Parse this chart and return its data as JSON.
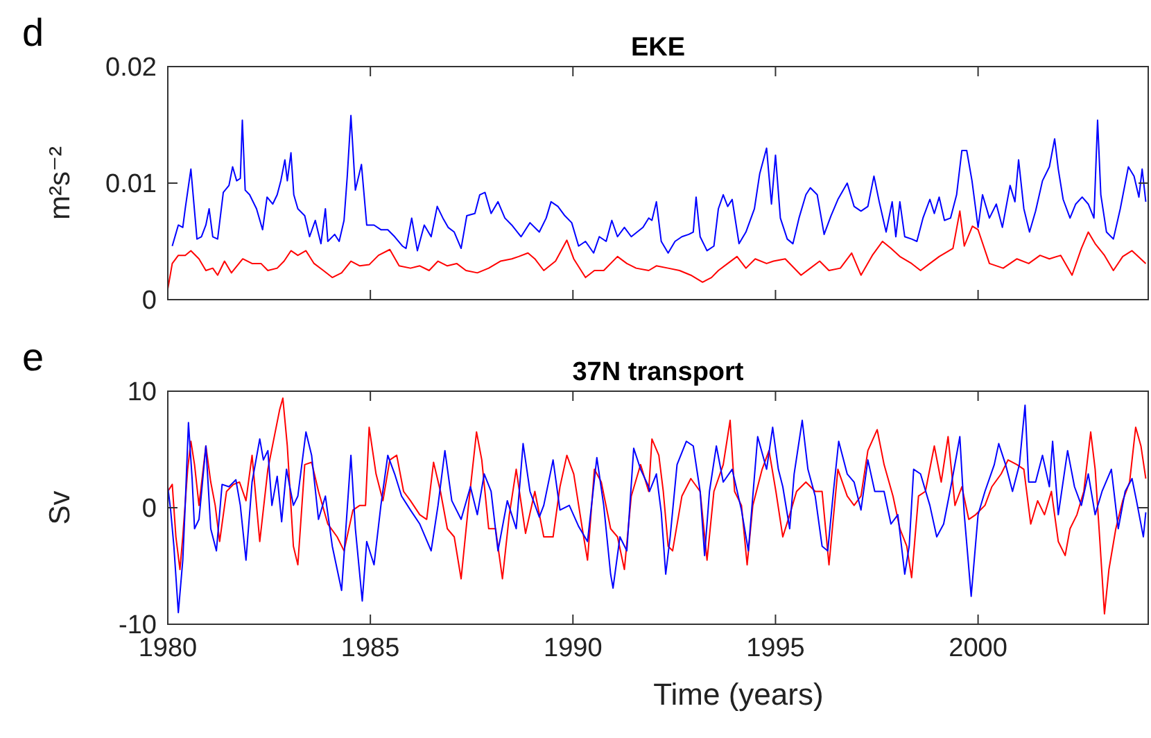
{
  "chart_data": [
    {
      "type": "line",
      "title": "EKE",
      "ylabel": "m²s⁻²",
      "annotations": [
        "d"
      ],
      "xlim": [
        1980,
        2004.2
      ],
      "xticks": [
        1980,
        1985,
        1990,
        1995,
        2000
      ],
      "ylim": [
        0,
        0.02
      ],
      "yticks": [
        0,
        0.01,
        0.02
      ],
      "tick_labels": "y",
      "series": [
        {
          "color": "#0000ff",
          "x": [
            1980.11,
            1980.26,
            1980.37,
            1980.43,
            1980.57,
            1980.72,
            1980.83,
            1980.94,
            1981.02,
            1981.11,
            1981.23,
            1981.37,
            1981.51,
            1981.6,
            1981.7,
            1981.79,
            1981.84,
            1981.91,
            1982.02,
            1982.19,
            1982.34,
            1982.45,
            1982.59,
            1982.7,
            1982.79,
            1982.89,
            1982.95,
            1983.04,
            1983.11,
            1983.21,
            1983.38,
            1983.5,
            1983.64,
            1983.78,
            1983.89,
            1983.95,
            1984.12,
            1984.23,
            1984.35,
            1984.43,
            1984.52,
            1984.63,
            1984.78,
            1984.91,
            1985.09,
            1985.26,
            1985.43,
            1985.6,
            1985.79,
            1985.88,
            1986.02,
            1986.16,
            1986.33,
            1986.5,
            1986.65,
            1986.79,
            1986.92,
            1987.07,
            1987.24,
            1987.38,
            1987.58,
            1987.7,
            1987.83,
            1987.98,
            1988.15,
            1988.32,
            1988.49,
            1988.72,
            1988.94,
            1989.17,
            1989.34,
            1989.46,
            1989.63,
            1989.8,
            1989.97,
            1990.14,
            1990.31,
            1990.51,
            1990.65,
            1990.82,
            1990.96,
            1991.1,
            1991.27,
            1991.44,
            1991.73,
            1991.87,
            1991.95,
            1992.06,
            1992.18,
            1992.35,
            1992.52,
            1992.69,
            1992.86,
            1992.97,
            1993.04,
            1993.14,
            1993.31,
            1993.48,
            1993.59,
            1993.71,
            1993.82,
            1993.93,
            1994.1,
            1994.27,
            1994.48,
            1994.61,
            1994.78,
            1994.9,
            1995.0,
            1995.12,
            1995.29,
            1995.43,
            1995.58,
            1995.75,
            1995.86,
            1996.03,
            1996.2,
            1996.37,
            1996.54,
            1996.77,
            1996.94,
            1997.11,
            1997.28,
            1997.43,
            1997.56,
            1997.73,
            1997.88,
            1997.97,
            1998.07,
            1998.19,
            1998.36,
            1998.49,
            1998.64,
            1998.81,
            1998.92,
            1999.04,
            1999.17,
            1999.32,
            1999.47,
            1999.6,
            1999.72,
            1999.85,
            2000.0,
            2000.11,
            2000.28,
            2000.45,
            2000.6,
            2000.79,
            2000.91,
            2001.0,
            2001.13,
            2001.27,
            2001.42,
            2001.59,
            2001.76,
            2001.89,
            2001.98,
            2002.1,
            2002.27,
            2002.41,
            2002.57,
            2002.72,
            2002.86,
            2002.95,
            2003.03,
            2003.17,
            2003.34,
            2003.51,
            2003.71,
            2003.85,
            2003.97,
            2004.05,
            2004.14
          ],
          "values": [
            0.0046,
            0.0064,
            0.0062,
            0.0078,
            0.0112,
            0.0052,
            0.0054,
            0.0064,
            0.0078,
            0.0054,
            0.0052,
            0.0092,
            0.0098,
            0.0114,
            0.0102,
            0.0104,
            0.0154,
            0.0094,
            0.009,
            0.0078,
            0.006,
            0.0088,
            0.0082,
            0.009,
            0.0102,
            0.012,
            0.0102,
            0.0126,
            0.009,
            0.0078,
            0.0072,
            0.0054,
            0.0068,
            0.0048,
            0.0078,
            0.005,
            0.0056,
            0.005,
            0.0068,
            0.0106,
            0.0158,
            0.0094,
            0.0116,
            0.0064,
            0.0064,
            0.006,
            0.006,
            0.0054,
            0.0046,
            0.0044,
            0.007,
            0.0042,
            0.0064,
            0.0054,
            0.008,
            0.007,
            0.0062,
            0.0058,
            0.0044,
            0.0072,
            0.0074,
            0.009,
            0.0092,
            0.0074,
            0.0084,
            0.007,
            0.0064,
            0.0054,
            0.0066,
            0.0058,
            0.007,
            0.0084,
            0.008,
            0.0072,
            0.0066,
            0.0046,
            0.005,
            0.004,
            0.0054,
            0.005,
            0.0068,
            0.0054,
            0.0062,
            0.0054,
            0.0062,
            0.007,
            0.0068,
            0.0084,
            0.005,
            0.004,
            0.005,
            0.0054,
            0.0056,
            0.0058,
            0.0088,
            0.0054,
            0.0042,
            0.0046,
            0.0078,
            0.009,
            0.008,
            0.0086,
            0.0048,
            0.0058,
            0.0078,
            0.0108,
            0.013,
            0.0082,
            0.0124,
            0.007,
            0.0052,
            0.0048,
            0.007,
            0.009,
            0.0096,
            0.009,
            0.0056,
            0.0072,
            0.0086,
            0.01,
            0.008,
            0.0076,
            0.008,
            0.0106,
            0.0084,
            0.0058,
            0.0084,
            0.0054,
            0.0084,
            0.0054,
            0.0052,
            0.005,
            0.007,
            0.0086,
            0.0074,
            0.0088,
            0.0068,
            0.007,
            0.009,
            0.0128,
            0.0128,
            0.0102,
            0.0062,
            0.009,
            0.007,
            0.0082,
            0.0062,
            0.0098,
            0.0084,
            0.012,
            0.0078,
            0.0058,
            0.0076,
            0.0102,
            0.0114,
            0.0138,
            0.0112,
            0.0086,
            0.007,
            0.0082,
            0.0088,
            0.0082,
            0.007,
            0.0154,
            0.009,
            0.0058,
            0.0052,
            0.0078,
            0.0114,
            0.0106,
            0.0088,
            0.0112,
            0.0084
          ]
        },
        {
          "color": "#ff0000",
          "x": [
            1980.0,
            1980.11,
            1980.26,
            1980.43,
            1980.57,
            1980.77,
            1980.94,
            1981.11,
            1981.23,
            1981.4,
            1981.57,
            1981.85,
            1982.08,
            1982.3,
            1982.47,
            1982.7,
            1982.87,
            1983.04,
            1983.21,
            1983.41,
            1983.61,
            1983.84,
            1984.06,
            1984.29,
            1984.52,
            1984.74,
            1984.97,
            1985.2,
            1985.48,
            1985.71,
            1985.99,
            1986.22,
            1986.45,
            1986.67,
            1986.9,
            1987.13,
            1987.36,
            1987.64,
            1987.92,
            1988.21,
            1988.49,
            1988.66,
            1988.89,
            1989.06,
            1989.28,
            1989.57,
            1989.85,
            1990.02,
            1990.31,
            1990.53,
            1990.76,
            1991.1,
            1991.33,
            1991.56,
            1991.87,
            1992.06,
            1992.35,
            1992.63,
            1992.91,
            1993.2,
            1993.42,
            1993.59,
            1993.82,
            1994.05,
            1994.27,
            1994.5,
            1994.78,
            1994.95,
            1995.24,
            1995.63,
            1995.86,
            1996.09,
            1996.32,
            1996.6,
            1996.88,
            1997.11,
            1997.39,
            1997.64,
            1997.85,
            1998.07,
            1998.36,
            1998.58,
            1998.81,
            1999.04,
            1999.38,
            1999.55,
            1999.66,
            1999.86,
            2000.0,
            2000.28,
            2000.62,
            2000.96,
            2001.25,
            2001.53,
            2001.76,
            2002.04,
            2002.32,
            2002.55,
            2002.72,
            2002.89,
            2003.12,
            2003.34,
            2003.57,
            2003.8,
            2004.14
          ],
          "values": [
            0.0009,
            0.0031,
            0.0038,
            0.0038,
            0.0042,
            0.0035,
            0.0025,
            0.0027,
            0.0021,
            0.0033,
            0.0023,
            0.0035,
            0.0031,
            0.0031,
            0.0025,
            0.0027,
            0.0033,
            0.0042,
            0.0038,
            0.0042,
            0.0031,
            0.0025,
            0.0019,
            0.0023,
            0.0033,
            0.0029,
            0.003,
            0.0038,
            0.0043,
            0.0029,
            0.0027,
            0.0029,
            0.0025,
            0.0033,
            0.0029,
            0.0031,
            0.0025,
            0.0023,
            0.0027,
            0.0033,
            0.0035,
            0.0037,
            0.004,
            0.0035,
            0.0025,
            0.0033,
            0.0051,
            0.0035,
            0.0019,
            0.0025,
            0.0025,
            0.0037,
            0.0031,
            0.0027,
            0.0025,
            0.0029,
            0.0027,
            0.0025,
            0.0021,
            0.0015,
            0.0019,
            0.0025,
            0.0031,
            0.0037,
            0.0027,
            0.0035,
            0.0031,
            0.0033,
            0.0035,
            0.0021,
            0.0027,
            0.0033,
            0.0025,
            0.0027,
            0.004,
            0.0021,
            0.0038,
            0.005,
            0.0044,
            0.0037,
            0.0031,
            0.0025,
            0.0031,
            0.0037,
            0.0044,
            0.0076,
            0.0046,
            0.0063,
            0.006,
            0.0031,
            0.0027,
            0.0035,
            0.0031,
            0.0038,
            0.0035,
            0.0038,
            0.0021,
            0.0044,
            0.0058,
            0.0048,
            0.0038,
            0.0025,
            0.0037,
            0.0042,
            0.0031
          ]
        }
      ]
    },
    {
      "type": "line",
      "title": "37N transport",
      "xlabel": "Time (years)",
      "ylabel": "Sv",
      "annotations": [
        "e"
      ],
      "xlim": [
        1980,
        2004.2
      ],
      "xticks": [
        1980,
        1985,
        1990,
        1995,
        2000
      ],
      "ylim": [
        -10,
        10
      ],
      "yticks": [
        -10,
        0,
        10
      ],
      "series": [
        {
          "color": "#ff0000",
          "x": [
            1980.0,
            1980.11,
            1980.2,
            1980.3,
            1980.37,
            1980.49,
            1980.57,
            1980.66,
            1980.77,
            1980.94,
            1981.06,
            1981.17,
            1981.28,
            1981.45,
            1981.62,
            1981.77,
            1981.93,
            1982.08,
            1982.27,
            1982.47,
            1982.64,
            1982.76,
            1982.84,
            1982.95,
            1983.1,
            1983.21,
            1983.38,
            1983.55,
            1983.72,
            1983.95,
            1984.18,
            1984.35,
            1984.57,
            1984.74,
            1984.88,
            1984.97,
            1985.14,
            1985.31,
            1985.48,
            1985.65,
            1985.82,
            1985.99,
            1986.22,
            1986.39,
            1986.56,
            1986.73,
            1986.9,
            1987.07,
            1987.24,
            1987.41,
            1987.62,
            1987.75,
            1987.92,
            1988.09,
            1988.26,
            1988.43,
            1988.6,
            1988.83,
            1989.06,
            1989.28,
            1989.51,
            1989.68,
            1989.85,
            1990.02,
            1990.25,
            1990.36,
            1990.53,
            1990.7,
            1990.93,
            1991.1,
            1991.27,
            1991.44,
            1991.67,
            1991.87,
            1991.95,
            1992.12,
            1992.23,
            1992.35,
            1992.46,
            1992.69,
            1992.91,
            1993.14,
            1993.31,
            1993.48,
            1993.71,
            1993.88,
            1993.99,
            1994.16,
            1994.3,
            1994.44,
            1994.67,
            1994.84,
            1995.01,
            1995.18,
            1995.35,
            1995.52,
            1995.75,
            1995.98,
            1996.15,
            1996.32,
            1996.54,
            1996.77,
            1996.94,
            1997.11,
            1997.28,
            1997.51,
            1997.68,
            1997.9,
            1998.07,
            1998.24,
            1998.36,
            1998.53,
            1998.7,
            1998.92,
            1999.09,
            1999.26,
            1999.43,
            1999.6,
            1999.77,
            1999.94,
            2000.17,
            2000.34,
            2000.57,
            2000.74,
            2000.96,
            2001.13,
            2001.3,
            2001.47,
            2001.64,
            2001.81,
            2001.98,
            2002.15,
            2002.27,
            2002.44,
            2002.61,
            2002.78,
            2002.89,
            2003.0,
            2003.12,
            2003.23,
            2003.4,
            2003.57,
            2003.74,
            2003.89,
            2004.02,
            2004.14
          ],
          "values": [
            1.4,
            2.0,
            -2.5,
            -5.3,
            -2.5,
            3.3,
            5.7,
            3.7,
            0.2,
            5.3,
            2.2,
            0.2,
            -2.9,
            1.4,
            2.0,
            2.2,
            0.6,
            4.5,
            -2.9,
            3.3,
            6.3,
            8.4,
            9.4,
            5.3,
            -3.3,
            -4.9,
            3.7,
            3.9,
            1.4,
            -1.4,
            -2.5,
            -3.7,
            -0.2,
            0.2,
            0.2,
            6.9,
            2.9,
            0.6,
            4.1,
            4.5,
            1.4,
            0.6,
            -0.6,
            -1.0,
            3.9,
            1.4,
            -1.8,
            -2.5,
            -6.1,
            -0.2,
            6.5,
            4.1,
            -1.8,
            -1.8,
            -6.1,
            -0.6,
            3.3,
            -2.2,
            1.4,
            -2.5,
            -2.5,
            1.8,
            4.5,
            2.9,
            -2.2,
            -4.5,
            3.3,
            2.2,
            -1.8,
            -2.5,
            -5.3,
            1.0,
            3.7,
            1.4,
            5.9,
            4.5,
            1.4,
            -3.3,
            -3.7,
            1.0,
            2.5,
            1.4,
            -4.5,
            1.4,
            3.7,
            7.5,
            1.4,
            0.2,
            -4.9,
            0.2,
            3.3,
            4.9,
            1.4,
            -2.5,
            -0.6,
            1.4,
            2.2,
            1.4,
            1.4,
            -4.9,
            3.3,
            1.0,
            0.2,
            1.0,
            4.9,
            6.7,
            3.7,
            1.0,
            -1.8,
            -3.3,
            -6.0,
            1.0,
            1.4,
            5.3,
            2.2,
            6.1,
            0.2,
            1.8,
            -1.0,
            -0.6,
            0.2,
            1.8,
            2.9,
            4.1,
            3.7,
            3.3,
            -1.4,
            0.6,
            -0.6,
            1.4,
            -2.9,
            -4.1,
            -1.8,
            -0.6,
            1.4,
            6.5,
            3.3,
            -2.5,
            -9.1,
            -5.3,
            -1.8,
            0.6,
            2.2,
            6.9,
            5.3,
            2.5
          ]
        },
        {
          "color": "#0000ff",
          "x": [
            1980.0,
            1980.07,
            1980.15,
            1980.26,
            1980.37,
            1980.43,
            1980.51,
            1980.6,
            1980.66,
            1980.77,
            1980.94,
            1981.06,
            1981.2,
            1981.34,
            1981.51,
            1981.68,
            1981.79,
            1981.93,
            1982.08,
            1982.27,
            1982.36,
            1982.47,
            1982.57,
            1982.7,
            1982.81,
            1982.93,
            1983.1,
            1983.21,
            1983.41,
            1983.55,
            1983.72,
            1983.89,
            1984.06,
            1984.29,
            1984.52,
            1984.63,
            1984.8,
            1984.91,
            1985.09,
            1985.26,
            1985.43,
            1985.6,
            1985.77,
            1985.99,
            1986.22,
            1986.5,
            1986.67,
            1986.84,
            1987.01,
            1987.24,
            1987.47,
            1987.64,
            1987.81,
            1987.98,
            1988.15,
            1988.38,
            1988.6,
            1988.77,
            1988.94,
            1989.17,
            1989.28,
            1989.51,
            1989.68,
            1989.91,
            1990.14,
            1990.36,
            1990.59,
            1990.76,
            1990.93,
            1990.99,
            1991.16,
            1991.33,
            1991.5,
            1991.67,
            1991.87,
            1991.89,
            1992.06,
            1992.18,
            1992.29,
            1992.4,
            1992.57,
            1992.8,
            1992.97,
            1993.14,
            1993.25,
            1993.37,
            1993.54,
            1993.71,
            1993.93,
            1994.16,
            1994.33,
            1994.56,
            1994.78,
            1994.93,
            1995.07,
            1995.18,
            1995.35,
            1995.46,
            1995.66,
            1995.8,
            1995.98,
            1996.15,
            1996.29,
            1996.43,
            1996.56,
            1996.77,
            1996.94,
            1997.11,
            1997.28,
            1997.45,
            1997.68,
            1997.85,
            1998.02,
            1998.19,
            1998.3,
            1998.41,
            1998.58,
            1998.81,
            1998.98,
            1999.15,
            1999.35,
            1999.55,
            1999.66,
            1999.83,
            2000.0,
            2000.17,
            2000.4,
            2000.51,
            2000.68,
            2000.85,
            2001.02,
            2001.16,
            2001.25,
            2001.42,
            2001.59,
            2001.76,
            2001.84,
            2001.98,
            2002.21,
            2002.38,
            2002.55,
            2002.72,
            2002.89,
            2003.06,
            2003.29,
            2003.46,
            2003.63,
            2003.8,
            2003.91,
            2004.08,
            2004.14
          ],
          "values": [
            1.8,
            -0.2,
            -3.3,
            -9.0,
            -4.5,
            0.2,
            7.3,
            2.5,
            -1.8,
            -1.0,
            5.3,
            -1.8,
            -3.7,
            2.0,
            1.8,
            2.4,
            0.2,
            -4.5,
            2.2,
            5.9,
            4.1,
            4.9,
            0.2,
            2.7,
            -1.2,
            3.3,
            0.2,
            1.0,
            6.5,
            4.5,
            -1.0,
            1.0,
            -3.3,
            -7.1,
            4.5,
            -1.8,
            -8.0,
            -2.9,
            -4.9,
            0.2,
            4.5,
            2.9,
            1.0,
            -0.2,
            -1.4,
            -3.7,
            0.2,
            4.9,
            0.6,
            -1.0,
            1.8,
            -0.6,
            2.9,
            1.4,
            -3.7,
            0.6,
            -1.8,
            5.5,
            1.4,
            -0.8,
            0.2,
            4.1,
            -0.2,
            0.2,
            -1.6,
            -2.9,
            4.3,
            0.2,
            -5.7,
            -6.9,
            -2.5,
            -3.7,
            5.1,
            3.3,
            1.8,
            1.4,
            2.9,
            -0.4,
            -5.7,
            -2.5,
            3.7,
            5.7,
            5.3,
            1.4,
            -4.1,
            1.4,
            5.3,
            2.2,
            3.3,
            -0.2,
            -3.7,
            6.1,
            3.3,
            6.9,
            3.3,
            1.8,
            -1.8,
            2.9,
            7.5,
            3.3,
            1.0,
            -3.3,
            -3.7,
            1.4,
            5.7,
            2.9,
            2.2,
            -0.2,
            4.1,
            1.4,
            1.4,
            -1.4,
            -0.6,
            -5.7,
            -3.3,
            3.3,
            2.9,
            0.2,
            -2.5,
            -1.4,
            2.2,
            6.1,
            -0.6,
            -7.6,
            -0.6,
            1.4,
            3.7,
            5.5,
            3.7,
            1.4,
            3.7,
            8.8,
            2.2,
            2.2,
            4.5,
            1.8,
            5.7,
            -0.6,
            4.9,
            1.8,
            0.2,
            2.9,
            -0.6,
            1.4,
            3.3,
            -1.8,
            1.4,
            2.5,
            0.6,
            -2.5,
            -0.4
          ]
        }
      ]
    }
  ]
}
